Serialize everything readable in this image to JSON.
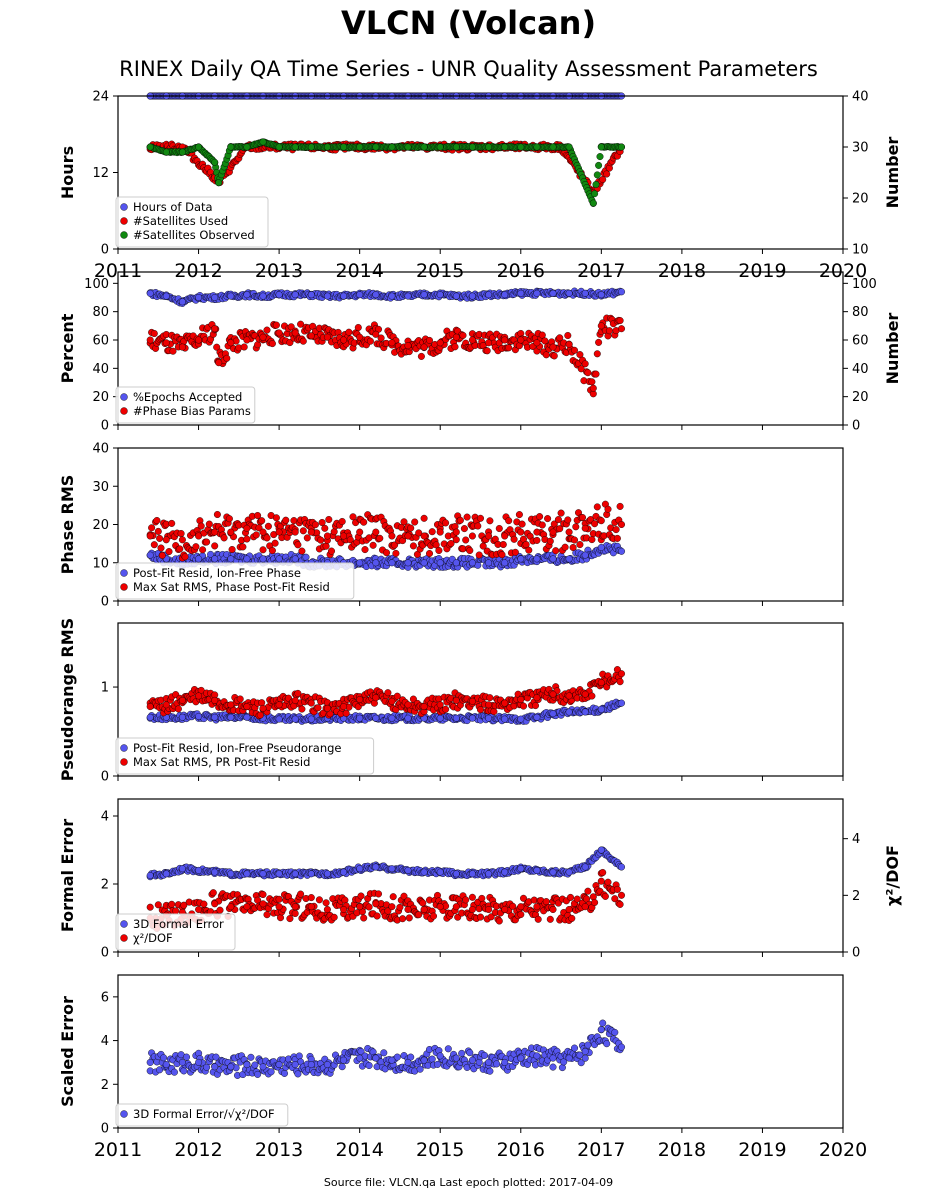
{
  "title": "VLCN (Volcan)",
  "subtitle": "RINEX Daily QA Time Series - UNR Quality Assessment Parameters",
  "footer": "Source file: VLCN.qa Last epoch plotted: 2017-04-09",
  "colors": {
    "blue": "#5555ee",
    "red": "#ee0000",
    "green": "#118811"
  },
  "chart_data": [
    {
      "type": "scatter",
      "ylabel": "Hours",
      "ylim": [
        0,
        24
      ],
      "yticks": [
        0,
        12,
        24
      ],
      "y2label": "Number",
      "y2lim": [
        10,
        40
      ],
      "y2ticks": [
        10,
        20,
        30,
        40
      ],
      "xlim": [
        2011,
        2020
      ],
      "xticks": [
        2011,
        2012,
        2013,
        2014,
        2015,
        2016,
        2017,
        2018,
        2019,
        2020
      ],
      "legend": "lower-left",
      "series": [
        {
          "name": "Hours of Data",
          "color": "blue",
          "axis": "left",
          "x": [
            2011.4,
            2011.6,
            2011.8,
            2012.0,
            2012.2,
            2012.4,
            2012.6,
            2012.8,
            2013.0,
            2013.2,
            2013.4,
            2013.6,
            2013.8,
            2014.0,
            2014.2,
            2014.4,
            2014.6,
            2014.8,
            2015.0,
            2015.2,
            2015.4,
            2015.6,
            2015.8,
            2016.0,
            2016.2,
            2016.4,
            2016.6,
            2016.8,
            2017.0,
            2017.25
          ],
          "y": [
            24,
            24,
            24,
            24,
            24,
            24,
            24,
            24,
            24,
            24,
            24,
            24,
            24,
            24,
            24,
            24,
            24,
            24,
            24,
            24,
            24,
            24,
            24,
            24,
            24,
            24,
            24,
            24,
            24,
            24
          ]
        },
        {
          "name": "#Satellites Used",
          "color": "red",
          "axis": "right",
          "x": [
            2011.4,
            2011.8,
            2012.2,
            2012.25,
            2012.6,
            2013.0,
            2013.5,
            2014.0,
            2014.5,
            2015.0,
            2015.5,
            2016.0,
            2016.5,
            2016.9,
            2017.25
          ],
          "y": [
            30,
            30,
            24,
            23,
            30,
            30,
            30,
            30,
            30,
            30,
            30,
            30,
            30,
            21,
            30
          ]
        },
        {
          "name": "#Satellites Observed",
          "color": "green",
          "axis": "right",
          "x": [
            2011.4,
            2011.6,
            2011.8,
            2012.0,
            2012.2,
            2012.25,
            2012.4,
            2012.6,
            2012.8,
            2013.0,
            2013.2,
            2013.4,
            2013.6,
            2013.8,
            2014.0,
            2014.2,
            2014.4,
            2014.6,
            2014.8,
            2015.0,
            2015.2,
            2015.4,
            2015.6,
            2015.8,
            2016.0,
            2016.2,
            2016.4,
            2016.6,
            2016.9,
            2017.0,
            2017.25
          ],
          "y": [
            30,
            29,
            29,
            30,
            27,
            23,
            30,
            30,
            31,
            30,
            30,
            30,
            30,
            30,
            30,
            30,
            30,
            30,
            30,
            30,
            30,
            30,
            30,
            30,
            30,
            30,
            30,
            30,
            19,
            30,
            30
          ]
        }
      ]
    },
    {
      "type": "scatter",
      "ylabel": "Percent",
      "ylim": [
        0,
        108
      ],
      "yticks": [
        0,
        20,
        40,
        60,
        80,
        100
      ],
      "y2label": "Number",
      "y2lim": [
        0,
        108
      ],
      "y2ticks": [
        0,
        20,
        40,
        60,
        80,
        100
      ],
      "xlim": [
        2011,
        2020
      ],
      "legend": "lower-left",
      "series": [
        {
          "name": "%Epochs Accepted",
          "color": "blue",
          "axis": "left",
          "x": [
            2011.4,
            2011.6,
            2011.8,
            2012.0,
            2012.2,
            2012.4,
            2012.6,
            2012.8,
            2013.0,
            2013.2,
            2013.4,
            2013.6,
            2013.8,
            2014.0,
            2014.2,
            2014.4,
            2014.6,
            2014.8,
            2015.0,
            2015.2,
            2015.4,
            2015.6,
            2015.8,
            2016.0,
            2016.2,
            2016.4,
            2016.6,
            2016.8,
            2017.0,
            2017.25
          ],
          "y": [
            93,
            91,
            87,
            90,
            90,
            91,
            92,
            91,
            92,
            92,
            92,
            91,
            91,
            92,
            92,
            91,
            91,
            92,
            92,
            91,
            91,
            92,
            92,
            93,
            93,
            93,
            93,
            93,
            92,
            94
          ]
        },
        {
          "name": "#Phase Bias Params",
          "color": "red",
          "axis": "right",
          "x": [
            2011.4,
            2011.6,
            2011.8,
            2012.0,
            2012.2,
            2012.25,
            2012.4,
            2012.6,
            2012.8,
            2013.0,
            2013.2,
            2013.4,
            2013.6,
            2013.8,
            2014.0,
            2014.2,
            2014.4,
            2014.6,
            2014.8,
            2015.0,
            2015.2,
            2015.4,
            2015.6,
            2015.8,
            2016.0,
            2016.2,
            2016.4,
            2016.6,
            2016.9,
            2017.0,
            2017.25
          ],
          "y": [
            60,
            58,
            55,
            60,
            68,
            44,
            58,
            60,
            62,
            65,
            65,
            63,
            62,
            60,
            62,
            64,
            58,
            56,
            55,
            58,
            62,
            60,
            58,
            60,
            60,
            58,
            55,
            57,
            26,
            70,
            68
          ]
        }
      ]
    },
    {
      "type": "scatter",
      "ylabel": "Phase RMS",
      "ylim": [
        0,
        40
      ],
      "yticks": [
        0,
        10,
        20,
        30,
        40
      ],
      "xlim": [
        2011,
        2020
      ],
      "legend": "lower-left",
      "series": [
        {
          "name": "Post-Fit Resid, Ion-Free Phase",
          "color": "blue",
          "x": [
            2011.4,
            2011.6,
            2011.8,
            2012.0,
            2012.2,
            2012.4,
            2012.6,
            2012.8,
            2013.0,
            2013.2,
            2013.4,
            2013.6,
            2013.8,
            2014.0,
            2014.2,
            2014.4,
            2014.6,
            2014.8,
            2015.0,
            2015.2,
            2015.4,
            2015.6,
            2015.8,
            2016.0,
            2016.2,
            2016.4,
            2016.6,
            2016.8,
            2017.0,
            2017.25
          ],
          "y": [
            12,
            11,
            10,
            11,
            11,
            11,
            11,
            11,
            11,
            11,
            10,
            10,
            10,
            10,
            10,
            10,
            10,
            10,
            10,
            10,
            10,
            10,
            10,
            11,
            11,
            11,
            11,
            12,
            14,
            13
          ]
        },
        {
          "name": "Max Sat RMS, Phase Post-Fit Resid",
          "color": "red",
          "x": [
            2011.4,
            2011.6,
            2011.8,
            2012.0,
            2012.2,
            2012.4,
            2012.6,
            2012.8,
            2013.0,
            2013.2,
            2013.4,
            2013.6,
            2013.8,
            2014.0,
            2014.2,
            2014.4,
            2014.6,
            2014.8,
            2015.0,
            2015.2,
            2015.4,
            2015.6,
            2015.8,
            2016.0,
            2016.2,
            2016.4,
            2016.6,
            2016.8,
            2017.0,
            2017.25
          ],
          "y": [
            17,
            16,
            16,
            17,
            18,
            18,
            19,
            18,
            18,
            18,
            18,
            17,
            17,
            18,
            18,
            17,
            17,
            17,
            18,
            18,
            17,
            17,
            17,
            18,
            18,
            18,
            18,
            19,
            21,
            20
          ]
        }
      ]
    },
    {
      "type": "scatter",
      "ylabel": "Pseudorange RMS",
      "ylim": [
        0,
        1.72
      ],
      "yticks": [
        0,
        1
      ],
      "xlim": [
        2011,
        2020
      ],
      "legend": "lower-left",
      "series": [
        {
          "name": "Post-Fit Resid, Ion-Free Pseudorange",
          "color": "blue",
          "x": [
            2011.4,
            2011.6,
            2011.8,
            2012.0,
            2012.2,
            2012.4,
            2012.6,
            2012.8,
            2013.0,
            2013.2,
            2013.4,
            2013.6,
            2013.8,
            2014.0,
            2014.2,
            2014.4,
            2014.6,
            2014.8,
            2015.0,
            2015.2,
            2015.4,
            2015.6,
            2015.8,
            2016.0,
            2016.2,
            2016.4,
            2016.6,
            2016.8,
            2017.0,
            2017.25
          ],
          "y": [
            0.66,
            0.66,
            0.66,
            0.67,
            0.66,
            0.66,
            0.66,
            0.65,
            0.64,
            0.64,
            0.64,
            0.65,
            0.65,
            0.65,
            0.65,
            0.65,
            0.65,
            0.65,
            0.65,
            0.65,
            0.65,
            0.65,
            0.64,
            0.64,
            0.66,
            0.7,
            0.72,
            0.72,
            0.75,
            0.82
          ]
        },
        {
          "name": "Max Sat RMS, PR Post-Fit Resid",
          "color": "red",
          "x": [
            2011.4,
            2011.6,
            2011.8,
            2012.0,
            2012.2,
            2012.4,
            2012.6,
            2012.8,
            2013.0,
            2013.2,
            2013.4,
            2013.6,
            2013.8,
            2014.0,
            2014.2,
            2014.4,
            2014.6,
            2014.8,
            2015.0,
            2015.2,
            2015.4,
            2015.6,
            2015.8,
            2016.0,
            2016.2,
            2016.4,
            2016.6,
            2016.8,
            2017.0,
            2017.25
          ],
          "y": [
            0.78,
            0.8,
            0.85,
            0.9,
            0.85,
            0.8,
            0.78,
            0.76,
            0.8,
            0.85,
            0.82,
            0.76,
            0.78,
            0.86,
            0.88,
            0.84,
            0.8,
            0.78,
            0.8,
            0.85,
            0.84,
            0.8,
            0.82,
            0.86,
            0.88,
            0.92,
            0.9,
            0.92,
            1.05,
            1.15
          ]
        }
      ]
    },
    {
      "type": "scatter",
      "ylabel": "Formal Error",
      "ylim": [
        0,
        4.5
      ],
      "yticks": [
        0,
        2,
        4
      ],
      "y2label": "χ²/DOF",
      "y2lim": [
        0,
        5.4
      ],
      "y2ticks": [
        0,
        2,
        4
      ],
      "xlim": [
        2011,
        2020
      ],
      "legend": "lower-left",
      "series": [
        {
          "name": "3D Formal Error",
          "color": "blue",
          "axis": "left",
          "x": [
            2011.4,
            2011.6,
            2011.8,
            2012.0,
            2012.2,
            2012.4,
            2012.6,
            2012.8,
            2013.0,
            2013.2,
            2013.4,
            2013.6,
            2013.8,
            2014.0,
            2014.2,
            2014.4,
            2014.6,
            2014.8,
            2015.0,
            2015.2,
            2015.4,
            2015.6,
            2015.8,
            2016.0,
            2016.2,
            2016.4,
            2016.6,
            2016.8,
            2017.0,
            2017.25
          ],
          "y": [
            2.25,
            2.3,
            2.45,
            2.4,
            2.35,
            2.3,
            2.3,
            2.3,
            2.3,
            2.3,
            2.3,
            2.3,
            2.35,
            2.45,
            2.5,
            2.45,
            2.4,
            2.35,
            2.35,
            2.3,
            2.3,
            2.3,
            2.35,
            2.45,
            2.4,
            2.35,
            2.35,
            2.5,
            3.0,
            2.5
          ]
        },
        {
          "name": "χ²/DOF",
          "color": "red",
          "axis": "right",
          "x": [
            2011.4,
            2011.6,
            2011.8,
            2012.0,
            2012.2,
            2012.4,
            2012.6,
            2012.8,
            2013.0,
            2013.2,
            2013.4,
            2013.6,
            2013.8,
            2014.0,
            2014.2,
            2014.4,
            2014.6,
            2014.8,
            2015.0,
            2015.2,
            2015.4,
            2015.6,
            2015.8,
            2016.0,
            2016.2,
            2016.4,
            2016.6,
            2016.8,
            2017.0,
            2017.25
          ],
          "y": [
            1.2,
            1.3,
            1.4,
            1.5,
            1.7,
            1.6,
            1.6,
            1.7,
            1.6,
            1.6,
            1.6,
            1.5,
            1.5,
            1.6,
            1.7,
            1.6,
            1.5,
            1.5,
            1.6,
            1.6,
            1.5,
            1.5,
            1.5,
            1.6,
            1.6,
            1.5,
            1.5,
            1.6,
            2.5,
            2.0
          ]
        }
      ]
    },
    {
      "type": "scatter",
      "ylabel": "Scaled Error",
      "ylim": [
        0,
        7
      ],
      "yticks": [
        0,
        2,
        4,
        6
      ],
      "xlim": [
        2011,
        2020
      ],
      "xticks": [
        2011,
        2012,
        2013,
        2014,
        2015,
        2016,
        2017,
        2018,
        2019,
        2020
      ],
      "legend": "lower-left",
      "series": [
        {
          "name": "3D Formal Error/√χ²/DOF",
          "color": "blue",
          "x": [
            2011.4,
            2011.6,
            2011.8,
            2012.0,
            2012.2,
            2012.4,
            2012.6,
            2012.8,
            2013.0,
            2013.2,
            2013.4,
            2013.6,
            2013.8,
            2014.0,
            2014.2,
            2014.4,
            2014.6,
            2014.8,
            2015.0,
            2015.2,
            2015.4,
            2015.6,
            2015.8,
            2016.0,
            2016.2,
            2016.4,
            2016.6,
            2016.8,
            2017.0,
            2017.25
          ],
          "y": [
            3.0,
            2.9,
            3.0,
            3.0,
            2.8,
            2.8,
            2.9,
            2.8,
            2.9,
            2.9,
            2.9,
            2.9,
            3.1,
            3.2,
            3.2,
            3.1,
            3.0,
            3.1,
            3.3,
            3.2,
            3.1,
            3.0,
            3.0,
            3.2,
            3.3,
            3.2,
            3.2,
            3.5,
            4.5,
            3.7
          ]
        }
      ]
    }
  ]
}
